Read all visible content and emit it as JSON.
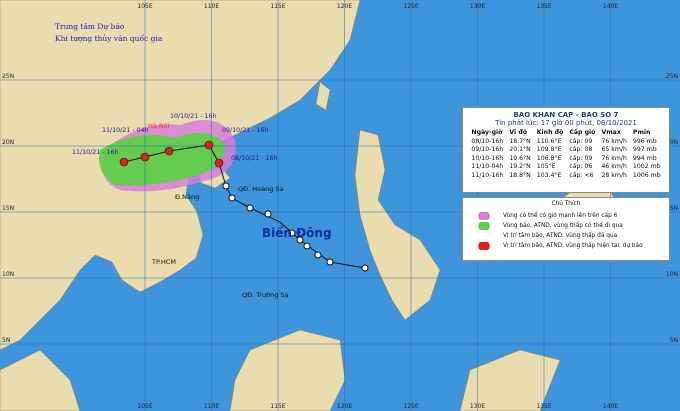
{
  "header": {
    "org1": "Trung tâm Dự báo",
    "org2": "Khí tượng thủy văn quốc gia"
  },
  "lon_labels": [
    "105E",
    "110E",
    "115E",
    "120E",
    "125E",
    "130E",
    "135E",
    "140E"
  ],
  "lat_labels": [
    "25N",
    "20N",
    "15N",
    "10N",
    "5N"
  ],
  "places": [
    "Hà Nội",
    "Đ.Nẵng",
    "QĐ. Hoàng Sa",
    "TP.HCM",
    "QĐ. Trường Sa",
    "Biển Đông"
  ],
  "track_labels": [
    "10/10/21 - 16h",
    "11/10/21 - 04h",
    "09/10/21 - 16h",
    "11/10/21 - 16h",
    "08/10/21 - 16h"
  ],
  "bulletin": {
    "title": "BAO KHAN CAP - BAO SO 7",
    "issued": "Tin phát lúc: 17 giờ 00 phút, 08/10/2021",
    "columns": [
      "Ngày-giờ",
      "Vĩ độ",
      "Kinh độ",
      "Cấp gió",
      "Vmax",
      "Pmin"
    ],
    "rows": [
      [
        "08/10-16h",
        "18.7°N",
        "110.6°E",
        "cấp: 09",
        "76 km/h",
        "996 mb"
      ],
      [
        "09/10-16h",
        "20.1°N",
        "109.8°E",
        "cấp: 08",
        "65 km/h",
        "997 mb"
      ],
      [
        "10/10-16h",
        "19.6°N",
        "106.8°E",
        "cấp: 09",
        "76 km/h",
        "994 mb"
      ],
      [
        "11/10-04h",
        "19.2°N",
        "105°E",
        "cấp: 06",
        "46 km/h",
        "1002 mb"
      ],
      [
        "11/10-16h",
        "18.8°N",
        "103.4°E",
        "cấp: <6",
        "28 km/h",
        "1006 mb"
      ]
    ]
  },
  "legend": {
    "title": "Chú Thích",
    "items": [
      "Vùng có thể có gió mạnh lên trên cấp 6",
      "Vùng bão, ATND, vùng thấp có thể đi qua",
      "Vị trí tâm bão, ATND, vùng thấp đã qua",
      "Vị trí tâm bão, ATND, vùng thấp hiện tại, dự báo"
    ]
  }
}
